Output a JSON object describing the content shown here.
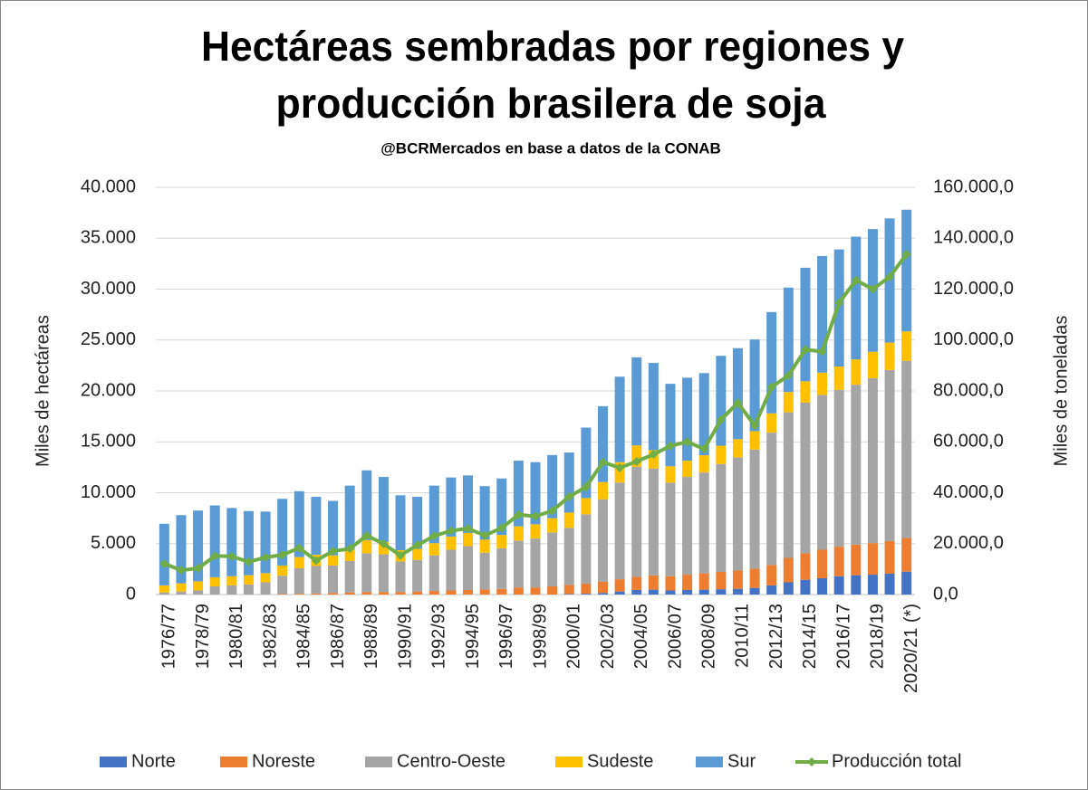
{
  "chart_data": {
    "type": "stacked-bar-line",
    "title": [
      "Hectáreas sembradas por regiones y",
      "producción brasilera de soja"
    ],
    "subtitle": "@BCRMercados  en base a datos de la CONAB",
    "y_label": "Miles de hectáreas",
    "y2_label": "Miles de toneladas",
    "categories": [
      "1976/77",
      null,
      "1978/79",
      null,
      "1980/81",
      null,
      "1982/83",
      null,
      "1984/85",
      null,
      "1986/87",
      null,
      "1988/89",
      null,
      "1990/91",
      null,
      "1992/93",
      null,
      "1994/95",
      null,
      "1996/97",
      null,
      "1998/99",
      null,
      "2000/01",
      null,
      "2002/03",
      null,
      "2004/05",
      null,
      "2006/07",
      null,
      "2008/09",
      null,
      "2010/11",
      null,
      "2012/13",
      null,
      "2014/15",
      null,
      "2016/17",
      null,
      "2018/19",
      null,
      "2020/21 (*)"
    ],
    "series": [
      {
        "name": "Norte",
        "color": "#4472c4",
        "values": [
          0,
          0,
          0,
          0,
          0,
          0,
          0,
          0,
          0,
          0,
          0,
          0,
          0,
          0,
          0,
          0,
          0,
          0,
          0,
          0,
          0,
          0,
          0,
          0,
          50,
          80,
          150,
          300,
          450,
          480,
          400,
          450,
          480,
          520,
          560,
          650,
          900,
          1200,
          1450,
          1600,
          1800,
          1900,
          1950,
          2050,
          2250
        ]
      },
      {
        "name": "Noreste",
        "color": "#ed7d31",
        "values": [
          0,
          0,
          0,
          0,
          0,
          0,
          0,
          50,
          80,
          100,
          150,
          200,
          250,
          250,
          250,
          300,
          350,
          400,
          450,
          500,
          550,
          700,
          700,
          800,
          900,
          1000,
          1100,
          1200,
          1300,
          1400,
          1400,
          1500,
          1600,
          1700,
          1800,
          1900,
          2000,
          2400,
          2600,
          2800,
          2900,
          3000,
          3100,
          3200,
          3300
        ]
      },
      {
        "name": "Centro-Oeste",
        "color": "#a5a5a5",
        "values": [
          200,
          300,
          400,
          800,
          900,
          1000,
          1200,
          1800,
          2500,
          2700,
          2700,
          3100,
          3800,
          3700,
          3000,
          3100,
          3500,
          4000,
          4300,
          3600,
          4000,
          4600,
          4800,
          5300,
          5600,
          6800,
          8100,
          9500,
          10800,
          10500,
          9200,
          9600,
          9900,
          10600,
          11100,
          11700,
          13000,
          14300,
          14800,
          15200,
          15400,
          15700,
          16200,
          16800,
          17400
        ]
      },
      {
        "name": "Sudeste",
        "color": "#ffc000",
        "values": [
          700,
          800,
          900,
          900,
          900,
          900,
          900,
          1000,
          1100,
          1100,
          1000,
          1100,
          1300,
          1200,
          1100,
          1100,
          1200,
          1300,
          1300,
          1300,
          1300,
          1400,
          1400,
          1400,
          1500,
          1600,
          1700,
          2000,
          2100,
          1800,
          1600,
          1600,
          1700,
          1800,
          1800,
          1800,
          1900,
          2000,
          2100,
          2200,
          2300,
          2500,
          2600,
          2700,
          2900
        ]
      },
      {
        "name": "Sur",
        "color": "#5b9bd5",
        "values": [
          6050,
          6700,
          6950,
          7050,
          6700,
          6300,
          6050,
          6550,
          6470,
          5700,
          5350,
          6300,
          6850,
          6400,
          5400,
          5100,
          5650,
          5800,
          5650,
          5250,
          5550,
          6450,
          6100,
          6200,
          5900,
          6920,
          7450,
          8400,
          8650,
          8570,
          8100,
          8150,
          8070,
          8830,
          8940,
          9000,
          9950,
          10250,
          11150,
          11450,
          11500,
          12050,
          12050,
          12200,
          11950
        ]
      },
      {
        "name": "Producción total",
        "color": "#70ad47",
        "axis": "y2",
        "type": "line",
        "values": [
          12150,
          9550,
          10250,
          15150,
          15000,
          12850,
          14600,
          15550,
          18300,
          13350,
          17050,
          18000,
          23200,
          19900,
          15400,
          19400,
          23050,
          25050,
          25950,
          23200,
          26150,
          31350,
          30750,
          32900,
          38450,
          42250,
          52000,
          49800,
          52300,
          55050,
          58400,
          60000,
          57150,
          68700,
          75300,
          66400,
          81500,
          86100,
          96250,
          95450,
          114600,
          123500,
          120000,
          124800,
          133700
        ]
      }
    ],
    "ylim": [
      0,
      40000
    ],
    "yticks": [
      0,
      {
        "value": 5000,
        "label": "5.000"
      },
      {
        "value": 10000,
        "label": "10.000"
      },
      {
        "value": 15000,
        "label": "15.000"
      },
      {
        "value": 20000,
        "label": "20.000"
      },
      {
        "value": 25000,
        "label": "25.000"
      },
      {
        "value": 30000,
        "label": "30.000"
      },
      {
        "value": 35000,
        "label": "35.000"
      },
      {
        "value": 40000,
        "label": "40.000"
      }
    ],
    "y2lim": [
      0,
      160000
    ],
    "y2ticks": [
      {
        "value": 0,
        "label": "0,0"
      },
      {
        "value": 20000,
        "label": "20.000,0"
      },
      {
        "value": 40000,
        "label": "40.000,0"
      },
      {
        "value": 60000,
        "label": "60.000,0"
      },
      {
        "value": 80000,
        "label": "80.000,0"
      },
      {
        "value": 100000,
        "label": "100.000,0"
      },
      {
        "value": 120000,
        "label": "120.000,0"
      },
      {
        "value": 140000,
        "label": "140.000,0"
      },
      {
        "value": 160000,
        "label": "160.000,0"
      }
    ],
    "grid": true,
    "legend": "bottom"
  }
}
